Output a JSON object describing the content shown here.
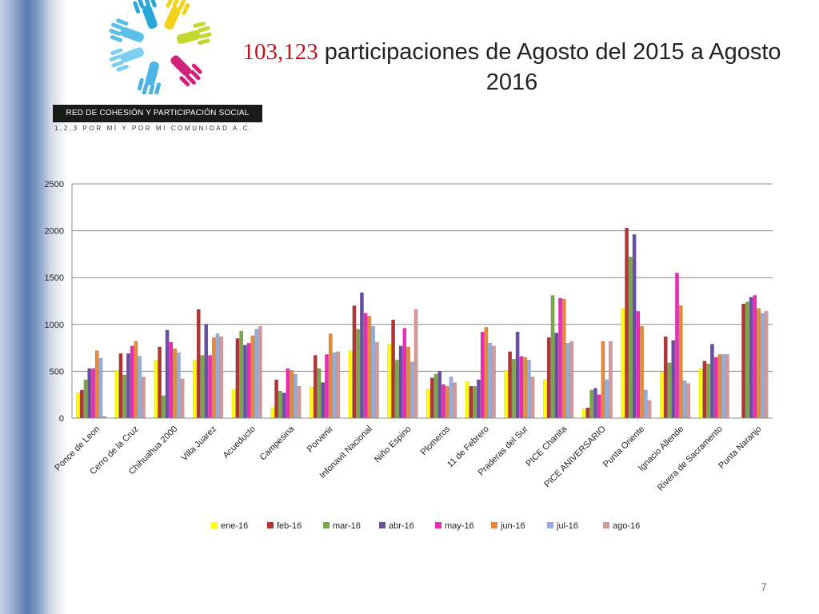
{
  "title": {
    "number": "103,123",
    "text": " participaciones  de Agosto del 2015 a Agosto 2016"
  },
  "organization": {
    "name": "RED DE COHESIÓN Y PARTICIPACIÓN SOCIAL",
    "subtitle": "1,2,3 POR MÍ Y POR MI COMUNIDAD A.C."
  },
  "page_number": "7",
  "colors": {
    "series": [
      "#ffff00",
      "#b13535",
      "#7ba64a",
      "#6a4ea3",
      "#ef2ab6",
      "#e6893a",
      "#93aede",
      "#d49a9a"
    ],
    "accent": "#c0131b"
  },
  "chart_data": {
    "type": "bar",
    "ylim": [
      0,
      2500
    ],
    "yticks": [
      "0",
      "500",
      "1000",
      "1500",
      "2000",
      "2500"
    ],
    "grid": true,
    "legend_position": "bottom",
    "categories": [
      "Ponce de Leon",
      "Cerro de la Cruz",
      "Chihuahua 2000",
      "Villa Juarez",
      "Acueducto",
      "Campesina",
      "Porvenir",
      "Infonavit Nacional",
      "Niño Espino",
      "Plomeros",
      "11 de Febrero",
      "Praderas del Sur",
      "PICE Chanita",
      "PICE ANIVERSARIO",
      "Punta Oriente",
      "Ignacio Allende",
      "Rivera de Sacramento",
      "Punta Naranjo"
    ],
    "series": [
      {
        "name": "ene-16",
        "values": [
          270,
          510,
          620,
          620,
          310,
          110,
          330,
          720,
          790,
          310,
          390,
          510,
          410,
          100,
          1170,
          490,
          530,
          0
        ]
      },
      {
        "name": "feb-16",
        "values": [
          300,
          690,
          760,
          1160,
          850,
          410,
          670,
          1200,
          1050,
          430,
          340,
          710,
          860,
          110,
          2030,
          870,
          610,
          1220
        ]
      },
      {
        "name": "mar-16",
        "values": [
          410,
          460,
          240,
          670,
          930,
          290,
          530,
          950,
          620,
          470,
          340,
          630,
          1310,
          300,
          1720,
          590,
          580,
          1240
        ]
      },
      {
        "name": "abr-16",
        "values": [
          530,
          690,
          940,
          1000,
          780,
          270,
          380,
          1340,
          770,
          500,
          410,
          920,
          910,
          320,
          1960,
          830,
          790,
          1290
        ]
      },
      {
        "name": "may-16",
        "values": [
          530,
          770,
          810,
          670,
          800,
          530,
          680,
          1120,
          960,
          360,
          920,
          660,
          1280,
          250,
          1140,
          1550,
          650,
          1310
        ]
      },
      {
        "name": "jun-16",
        "values": [
          720,
          820,
          740,
          860,
          880,
          510,
          900,
          1090,
          760,
          340,
          970,
          650,
          1270,
          820,
          980,
          1200,
          680,
          1170
        ]
      },
      {
        "name": "jul-16",
        "values": [
          640,
          660,
          700,
          900,
          950,
          470,
          700,
          980,
          600,
          440,
          800,
          620,
          800,
          410,
          300,
          400,
          680,
          1120
        ]
      },
      {
        "name": "ago-16",
        "values": [
          20,
          440,
          420,
          870,
          980,
          340,
          710,
          810,
          1160,
          380,
          770,
          440,
          820,
          820,
          190,
          370,
          680,
          1140
        ]
      }
    ]
  }
}
